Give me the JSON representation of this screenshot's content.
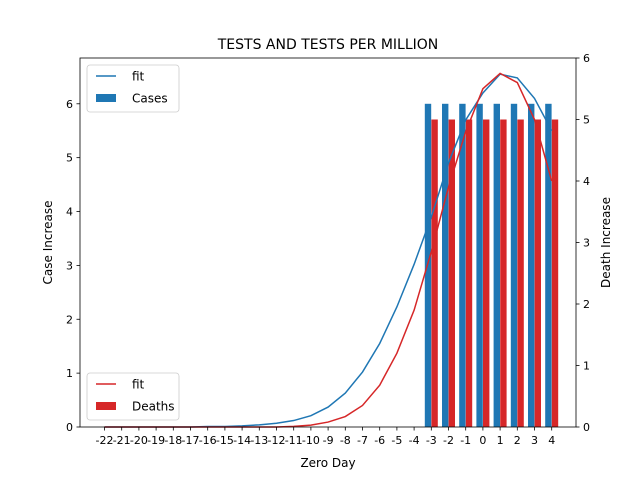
{
  "chart_data": {
    "type": "bar",
    "title": "TESTS AND TESTS PER MILLION",
    "xlabel": "Zero Day",
    "ylabel_left": "Case Increase",
    "ylabel_right": "Death Increase",
    "x_categories": [
      "-22",
      "-21",
      "-20",
      "-19",
      "-18",
      "-17",
      "-16",
      "-15",
      "-14",
      "-13",
      "-12",
      "-11",
      "-10",
      "-9",
      "-8",
      "-7",
      "-6",
      "-5",
      "-4",
      "-3",
      "-2",
      "-1",
      "0",
      "1",
      "2",
      "3",
      "4"
    ],
    "ylim_left": [
      0,
      6.85
    ],
    "ylim_right": [
      0,
      6.0
    ],
    "yticks_left": [
      0,
      1,
      2,
      3,
      4,
      5,
      6
    ],
    "yticks_right": [
      0,
      1,
      2,
      3,
      4,
      5,
      6
    ],
    "grid": false,
    "legends": [
      {
        "position": "top-left",
        "axis": "left",
        "entries": [
          {
            "label": "fit",
            "kind": "line",
            "color": "#1f77b4"
          },
          {
            "label": "Cases",
            "kind": "bar",
            "color": "#1f77b4"
          }
        ]
      },
      {
        "position": "bottom-left",
        "axis": "right",
        "entries": [
          {
            "label": "fit",
            "kind": "line",
            "color": "#d62728"
          },
          {
            "label": "Deaths",
            "kind": "bar",
            "color": "#d62728"
          }
        ]
      }
    ],
    "series": [
      {
        "name": "Cases",
        "kind": "bar",
        "axis": "left",
        "color": "#1f77b4",
        "x": [
          "-3",
          "-2",
          "-1",
          "0",
          "1",
          "2",
          "3",
          "4"
        ],
        "values": [
          6,
          6,
          6,
          6,
          6,
          6,
          6,
          6
        ]
      },
      {
        "name": "Deaths",
        "kind": "bar",
        "axis": "right",
        "color": "#d62728",
        "x": [
          "-3",
          "-2",
          "-1",
          "0",
          "1",
          "2",
          "3",
          "4"
        ],
        "values": [
          5,
          5,
          5,
          5,
          5,
          5,
          5,
          5
        ]
      },
      {
        "name": "fit",
        "kind": "line",
        "axis": "left",
        "color": "#1f77b4",
        "x": [
          "-22",
          "-21",
          "-20",
          "-19",
          "-18",
          "-17",
          "-16",
          "-15",
          "-14",
          "-13",
          "-12",
          "-11",
          "-10",
          "-9",
          "-8",
          "-7",
          "-6",
          "-5",
          "-4",
          "-3",
          "-2",
          "-1",
          "0",
          "1",
          "2",
          "3",
          "4"
        ],
        "values": [
          0,
          0,
          0,
          0,
          0,
          0,
          0.01,
          0.01,
          0.02,
          0.04,
          0.07,
          0.12,
          0.21,
          0.37,
          0.63,
          1.02,
          1.55,
          2.23,
          3.02,
          3.9,
          4.9,
          5.7,
          6.2,
          6.55,
          6.48,
          6.1,
          5.5
        ]
      },
      {
        "name": "fit",
        "kind": "line",
        "axis": "right",
        "color": "#d62728",
        "x": [
          "-22",
          "-21",
          "-20",
          "-19",
          "-18",
          "-17",
          "-16",
          "-15",
          "-14",
          "-13",
          "-12",
          "-11",
          "-10",
          "-9",
          "-8",
          "-7",
          "-6",
          "-5",
          "-4",
          "-3",
          "-2",
          "-1",
          "0",
          "1",
          "2",
          "3",
          "4"
        ],
        "values": [
          0,
          0,
          0,
          0,
          0,
          0,
          0,
          0,
          0,
          0,
          0,
          0.01,
          0.03,
          0.08,
          0.17,
          0.35,
          0.68,
          1.2,
          1.9,
          2.85,
          3.9,
          4.8,
          5.5,
          5.75,
          5.6,
          5.0,
          4.0
        ]
      }
    ]
  }
}
